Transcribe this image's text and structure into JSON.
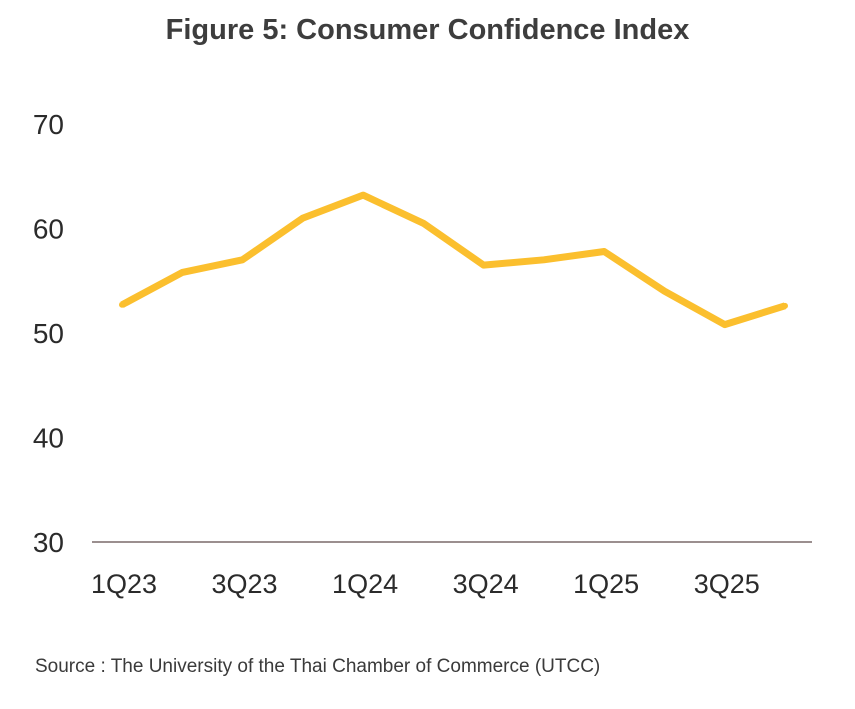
{
  "figure": {
    "title": "Figure 5: Consumer Confidence Index",
    "source": "Source : The University of the Thai Chamber of Commerce (UTCC)"
  },
  "chart_data": {
    "type": "line",
    "title": "Figure 5: Consumer Confidence Index",
    "xlabel": "",
    "ylabel": "",
    "categories": [
      "1Q23",
      "2Q23",
      "3Q23",
      "4Q23",
      "1Q24",
      "2Q24",
      "3Q24",
      "4Q24",
      "1Q25",
      "2Q25",
      "3Q25",
      "4Q25"
    ],
    "x_tick_labels": [
      "1Q23",
      "3Q23",
      "1Q24",
      "3Q24",
      "1Q25",
      "3Q25"
    ],
    "y_ticks": [
      30,
      40,
      50,
      60,
      70
    ],
    "ylim": [
      30,
      70
    ],
    "grid": false,
    "legend": "none",
    "series": [
      {
        "values": [
          52.7,
          55.8,
          57.0,
          61.0,
          63.2,
          60.5,
          56.5,
          57.0,
          57.8,
          54.0,
          50.8,
          52.6
        ]
      }
    ],
    "colors": {
      "line": "#FBBF2E",
      "axis": "#7a6a6a"
    }
  }
}
